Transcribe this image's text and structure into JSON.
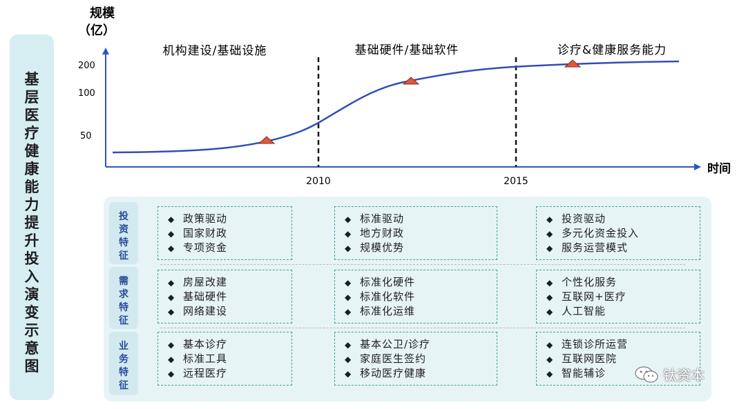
{
  "side_title": [
    "基",
    "层",
    "医",
    "疗",
    "健",
    "康",
    "能",
    "力",
    "提",
    "升",
    "投",
    "入",
    "演",
    "变",
    "示",
    "意",
    "图"
  ],
  "chart_data": {
    "type": "line",
    "y_axis_label_line1": "规模",
    "y_axis_label_line2": "（亿）",
    "x_axis_label": "时间",
    "y_ticks": [
      "200",
      "100",
      "50"
    ],
    "x_ticks": [
      "2010",
      "2015"
    ],
    "phases": [
      "机构建设/基础设施",
      "基础硬件/基础软件",
      "诊疗&健康服务能力"
    ],
    "curve": "s-shaped growth curve",
    "markers": 3
  },
  "rows": [
    {
      "category": [
        "投",
        "资",
        "特",
        "征"
      ],
      "columns": [
        [
          "政策驱动",
          "国家财政",
          "专项资金"
        ],
        [
          "标准驱动",
          "地方财政",
          "规模优势"
        ],
        [
          "投资驱动",
          "多元化资金投入",
          "服务运营模式"
        ]
      ]
    },
    {
      "category": [
        "需",
        "求",
        "特",
        "征"
      ],
      "columns": [
        [
          "房屋改建",
          "基础硬件",
          "网络建设"
        ],
        [
          "标准化硬件",
          "标准化软件",
          "标准化运维"
        ],
        [
          "个性化服务",
          "互联网+医疗",
          "人工智能"
        ]
      ]
    },
    {
      "category": [
        "业",
        "务",
        "特",
        "征"
      ],
      "columns": [
        [
          "基本诊疗",
          "标准工具",
          "远程医疗"
        ],
        [
          "基本公卫/诊疗",
          "家庭医生签约",
          "移动医疗健康"
        ],
        [
          "连锁诊所运营",
          "互联网医院",
          "智能辅诊"
        ]
      ]
    }
  ],
  "bullet": "◆",
  "watermark": "钛资本",
  "colors": {
    "axis": "#2b56c8",
    "curve": "#2f4fb5",
    "marker_fill": "#e0573a",
    "divider": "#111111",
    "box_border": "#3aa39e",
    "panel_bg": "#e7f4f6"
  }
}
